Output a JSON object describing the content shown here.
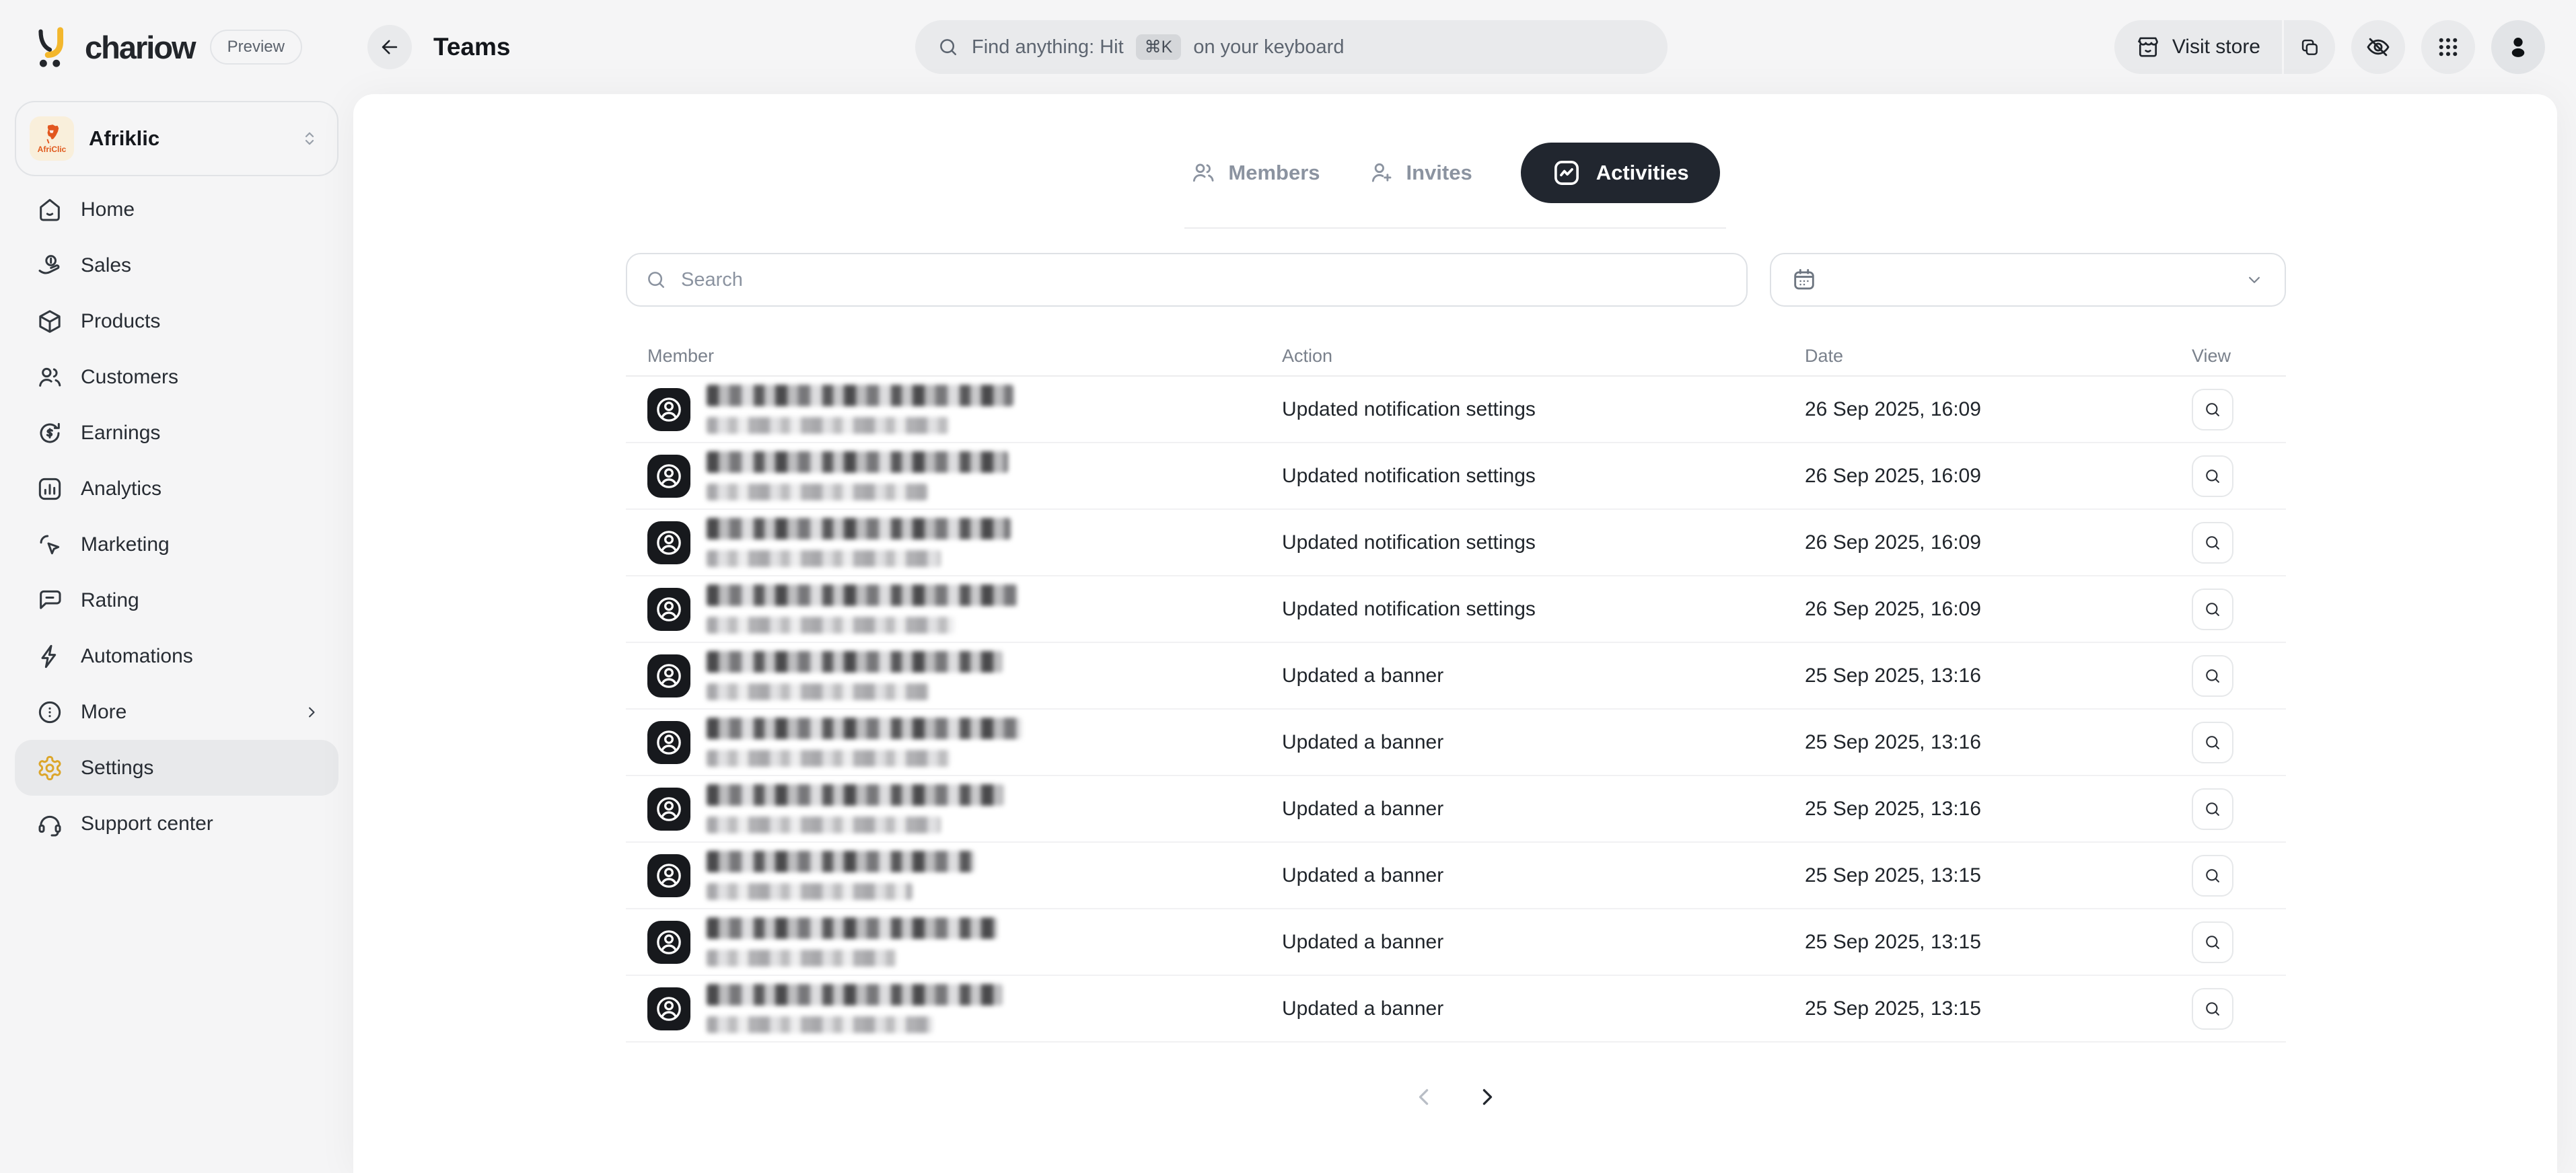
{
  "brand": {
    "name": "chariow",
    "preview_badge": "Preview"
  },
  "topbar": {
    "page_title": "Teams",
    "global_search_prefix": "Find anything: Hit",
    "global_search_kbd": "⌘K",
    "global_search_suffix": "on your keyboard",
    "visit_store_label": "Visit store"
  },
  "workspace": {
    "name": "Afriklic",
    "logo_text": "AfriClic"
  },
  "sidebar": {
    "items": [
      {
        "label": "Home",
        "icon": "home"
      },
      {
        "label": "Sales",
        "icon": "sales"
      },
      {
        "label": "Products",
        "icon": "products"
      },
      {
        "label": "Customers",
        "icon": "customers"
      },
      {
        "label": "Earnings",
        "icon": "earnings"
      },
      {
        "label": "Analytics",
        "icon": "analytics"
      },
      {
        "label": "Marketing",
        "icon": "marketing"
      },
      {
        "label": "Rating",
        "icon": "rating"
      },
      {
        "label": "Automations",
        "icon": "automations"
      },
      {
        "label": "More",
        "icon": "more",
        "chevron": true
      },
      {
        "label": "Settings",
        "icon": "settings",
        "active": true
      },
      {
        "label": "Support center",
        "icon": "support"
      }
    ]
  },
  "tabs": [
    {
      "label": "Members",
      "icon": "members",
      "active": false
    },
    {
      "label": "Invites",
      "icon": "invites",
      "active": false
    },
    {
      "label": "Activities",
      "icon": "activity",
      "active": true
    }
  ],
  "filters": {
    "search_placeholder": "Search"
  },
  "table": {
    "columns": [
      "Member",
      "Action",
      "Date",
      "View"
    ],
    "member_identity_redacted": true,
    "rows": [
      {
        "action": "Updated notification settings",
        "date": "26 Sep 2025, 16:09"
      },
      {
        "action": "Updated notification settings",
        "date": "26 Sep 2025, 16:09"
      },
      {
        "action": "Updated notification settings",
        "date": "26 Sep 2025, 16:09"
      },
      {
        "action": "Updated notification settings",
        "date": "26 Sep 2025, 16:09"
      },
      {
        "action": "Updated a banner",
        "date": "25 Sep 2025, 13:16"
      },
      {
        "action": "Updated a banner",
        "date": "25 Sep 2025, 13:16"
      },
      {
        "action": "Updated a banner",
        "date": "25 Sep 2025, 13:16"
      },
      {
        "action": "Updated a banner",
        "date": "25 Sep 2025, 13:15"
      },
      {
        "action": "Updated a banner",
        "date": "25 Sep 2025, 13:15"
      },
      {
        "action": "Updated a banner",
        "date": "25 Sep 2025, 13:15"
      }
    ]
  },
  "pagination": {
    "prev_enabled": false,
    "next_enabled": true
  },
  "colors": {
    "background": "#f5f5f6",
    "card": "#ffffff",
    "dark_pill": "#21262f",
    "settings_gold": "#dca62b",
    "brand_yellow": "#f3b72d",
    "workspace_orange": "#e05a1e"
  }
}
